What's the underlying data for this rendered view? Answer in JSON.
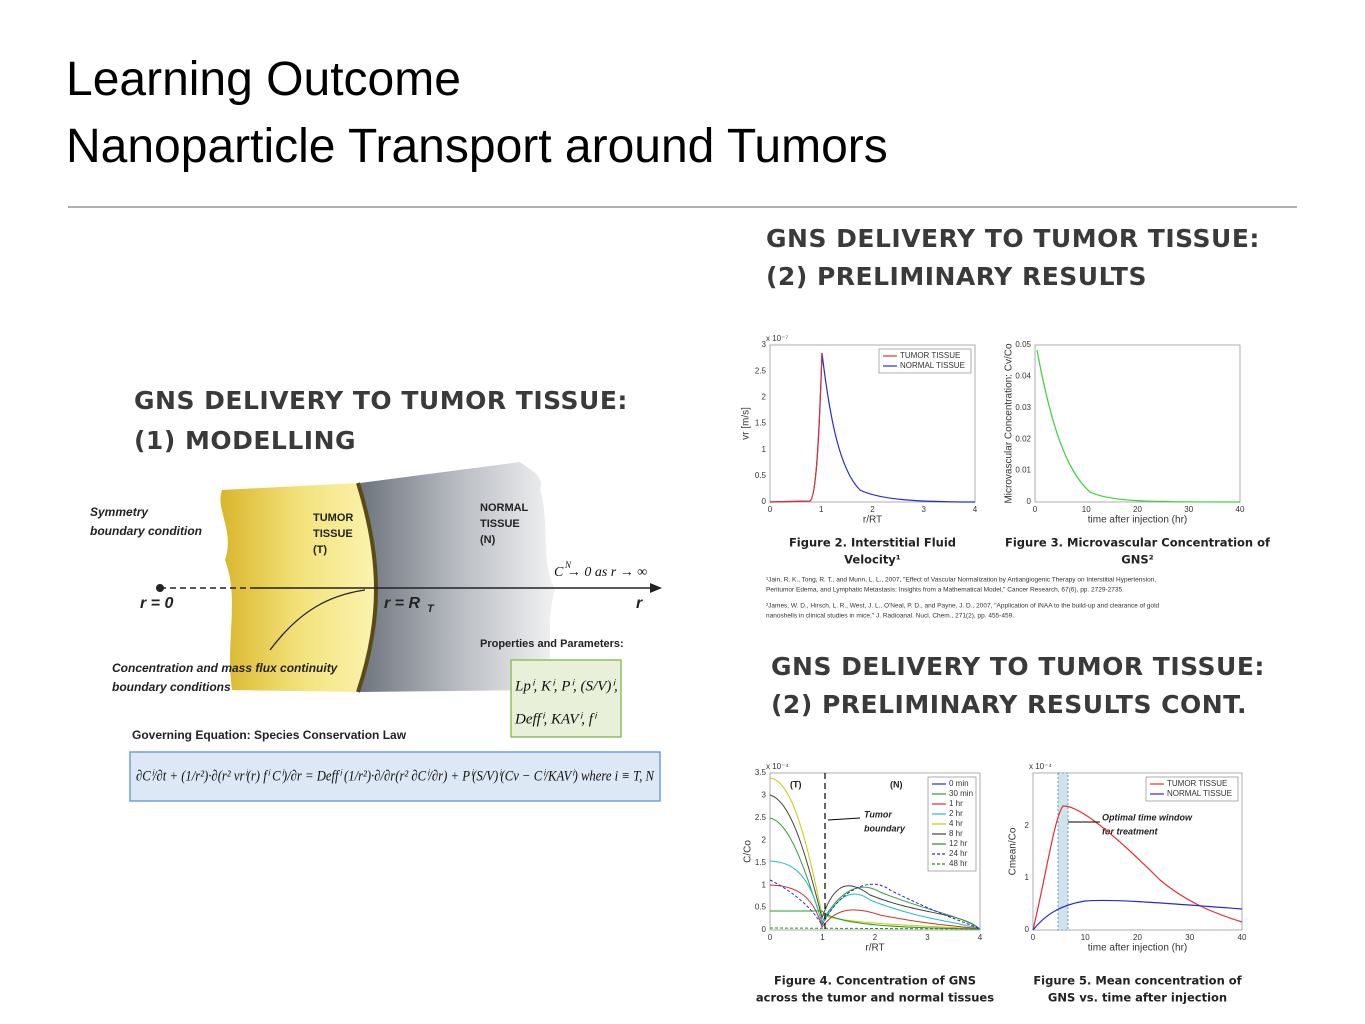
{
  "title": [
    "Learning Outcome",
    "Nanoparticle Transport around Tumors"
  ],
  "modelling": {
    "heading": [
      "GNS DELIVERY TO TUMOR TISSUE:",
      "(1) MODELLING"
    ],
    "symmetry": [
      "Symmetry",
      "boundary condition"
    ],
    "tumor": [
      "TUMOR",
      "TISSUE",
      "(T)"
    ],
    "normal": [
      "NORMAL",
      "TISSUE",
      "(N)"
    ],
    "r0": "r = 0",
    "rT": "r = R",
    "rT_sub": "T",
    "r": "r",
    "limit": "C  → 0 as r → ∞",
    "limit_sup": "N",
    "continuity": [
      "Concentration and mass flux continuity",
      "boundary conditions"
    ],
    "properties_title": "Properties and Parameters:",
    "properties": [
      "Lpⁱ, Kⁱ, Pⁱ, (S/V)ⁱ,",
      "Deffⁱ, KAVⁱ, fⁱ"
    ],
    "governing_title": "Governing Equation: Species Conservation Law",
    "governing": "∂Cⁱ/∂t + (1/r²)·∂(r² vrⁱ(r) fⁱ Cⁱ)/∂r = Deffⁱ (1/r²)·∂/∂r(r² ∂Cⁱ/∂r) + Pⁱ(S/V)ⁱ(Cv − Cⁱ/KAVⁱ)   where i ≡ T, N"
  },
  "results": {
    "heading": [
      "GNS DELIVERY TO TUMOR TISSUE:",
      "(2) PRELIMINARY RESULTS"
    ],
    "fig2": {
      "exponent": "x 10⁻⁷",
      "ylabel": "vr [m/s]",
      "yticks": [
        "0",
        "0.5",
        "1",
        "1.5",
        "2",
        "2.5",
        "3"
      ],
      "xticks": [
        "0",
        "1",
        "2",
        "3",
        "4"
      ],
      "xlabel": "r/RT",
      "legend": [
        "TUMOR TISSUE",
        "NORMAL TISSUE"
      ],
      "caption": [
        "Figure 2.  Interstitial Fluid",
        "Velocity¹"
      ]
    },
    "fig3": {
      "ylabel": "Microvascular Concentration: Cv/Co",
      "yticks": [
        "0",
        "0.01",
        "0.02",
        "0.03",
        "0.04",
        "0.05"
      ],
      "xticks": [
        "0",
        "10",
        "20",
        "30",
        "40"
      ],
      "xlabel": "time after injection (hr)",
      "caption": [
        "Figure 3.  Microvascular Concentration of",
        "GNS²"
      ]
    },
    "refs": [
      "¹Jain, R. K., Tong, R. T., and Munn, L. L., 2007, \"Effect of Vascular Normalization by Antiangiogenic Therapy on Interstitial Hypertension,",
      "Peritumor Edema, and Lymphatic Metastasis: Insights from a Mathematical Model,\" Cancer Research, 67(6), pp. 2729-2735.",
      "²James, W. D., Hirsch, L. R., West, J. L., O'Neal, P. D., and Payne, J. D., 2007, \"Application of INAA to the build-up and clearance of gold",
      "nanoshells in clinical studies in mice,\" J. Radioanal. Nucl. Chem., 271(2), pp. 455-459."
    ]
  },
  "results_cont": {
    "heading": [
      "GNS DELIVERY TO TUMOR TISSUE:",
      "(2) PRELIMINARY RESULTS CONT."
    ],
    "fig4": {
      "exponent": "x 10⁻⁴",
      "ylabel": "C/Co",
      "yticks": [
        "0",
        "0.5",
        "1",
        "1.5",
        "2",
        "2.5",
        "3",
        "3.5"
      ],
      "xticks": [
        "0",
        "1",
        "2",
        "3",
        "4"
      ],
      "xlabel": "r/RT",
      "tissue": [
        "(T)",
        "(N)"
      ],
      "boundary": [
        "Tumor",
        "boundary"
      ],
      "legend": [
        "0 min",
        "30 min",
        "1 hr",
        "2 hr",
        "4 hr",
        "8 hr",
        "12 hr",
        "24 hr",
        "48 hr"
      ],
      "caption": [
        "Figure 4.  Concentration of GNS",
        "across the tumor and normal tissues"
      ]
    },
    "fig5": {
      "exponent": "x 10⁻⁴",
      "ylabel": "Cmean/Co",
      "yticks": [
        "0",
        "1",
        "2"
      ],
      "xticks": [
        "0",
        "10",
        "20",
        "30",
        "40"
      ],
      "xlabel": "time after injection (hr)",
      "legend": [
        "TUMOR TISSUE",
        "NORMAL TISSUE"
      ],
      "window": [
        "Optimal time window",
        "for treatment"
      ],
      "caption": [
        "Figure 5.  Mean concentration of",
        "GNS vs. time after injection"
      ]
    }
  }
}
